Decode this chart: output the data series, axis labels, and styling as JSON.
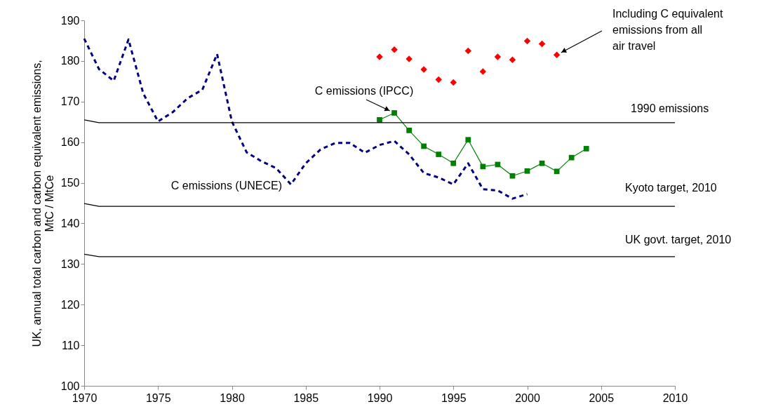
{
  "chart_data": {
    "type": "line",
    "ylabel": "UK, annual total carbon and carbon equivalent emissions, MtC / MtCe",
    "xlim": [
      1970,
      2010
    ],
    "xticks": [
      1970,
      1975,
      1980,
      1985,
      1990,
      1995,
      2000,
      2005,
      2010
    ],
    "ylim": [
      100,
      190
    ],
    "yticks": [
      100,
      110,
      120,
      130,
      140,
      150,
      160,
      170,
      180,
      190
    ],
    "series": [
      {
        "name": "C emissions (UNECE)",
        "color": "#000080",
        "line_style": "dashed",
        "x": [
          1970,
          1971,
          1972,
          1973,
          1974,
          1975,
          1976,
          1977,
          1978,
          1979,
          1980,
          1981,
          1982,
          1983,
          1984,
          1985,
          1986,
          1987,
          1988,
          1989,
          1990,
          1991,
          1992,
          1993,
          1994,
          1995,
          1996,
          1997,
          1998,
          1999,
          2000
        ],
        "values": [
          185.5,
          178,
          175.1,
          185.3,
          172,
          165.1,
          167.4,
          170.8,
          172.9,
          181.7,
          165.1,
          157.5,
          155.3,
          153.6,
          149.6,
          154.8,
          158.2,
          159.8,
          159.8,
          157.4,
          159.3,
          160.3,
          157.0,
          152.4,
          151.3,
          149.6,
          154.8,
          148.4,
          148.1,
          146.1,
          147.2
        ]
      },
      {
        "name": "C emissions (IPCC)",
        "color": "#008000",
        "line_style": "solid",
        "marker": "square",
        "x": [
          1990,
          1991,
          1992,
          1993,
          1994,
          1995,
          1996,
          1997,
          1998,
          1999,
          2000,
          2001,
          2002,
          2003,
          2004
        ],
        "values": [
          165.5,
          167.2,
          162.9,
          159.0,
          157.0,
          154.8,
          160.6,
          154.0,
          154.5,
          151.7,
          152.9,
          154.8,
          152.8,
          156.2,
          158.4
        ]
      },
      {
        "name": "Including C equivalent\nemissions from all\nair travel",
        "type": "scatter",
        "color": "#ff0000",
        "marker": "diamond",
        "x": [
          1990,
          1991,
          1992,
          1993,
          1994,
          1995,
          1996,
          1997,
          1998,
          1999,
          2000,
          2001,
          2002
        ],
        "values": [
          181.0,
          182.8,
          180.5,
          177.9,
          175.4,
          174.7,
          182.5,
          177.4,
          181.0,
          180.3,
          184.9,
          184.2,
          181.5
        ]
      },
      {
        "name": "1990 emissions",
        "color": "#000000",
        "line_style": "solid",
        "x": [
          1970,
          1971,
          2010
        ],
        "values": [
          165.5,
          164.8,
          164.8
        ]
      },
      {
        "name": "Kyoto target, 2010",
        "color": "#000000",
        "line_style": "solid",
        "x": [
          1970,
          1971,
          2010
        ],
        "values": [
          144.9,
          144.2,
          144.2
        ]
      },
      {
        "name": "UK govt. target, 2010",
        "color": "#000000",
        "line_style": "solid",
        "x": [
          1970,
          1971,
          2010
        ],
        "values": [
          132.4,
          131.8,
          131.8
        ]
      }
    ]
  }
}
